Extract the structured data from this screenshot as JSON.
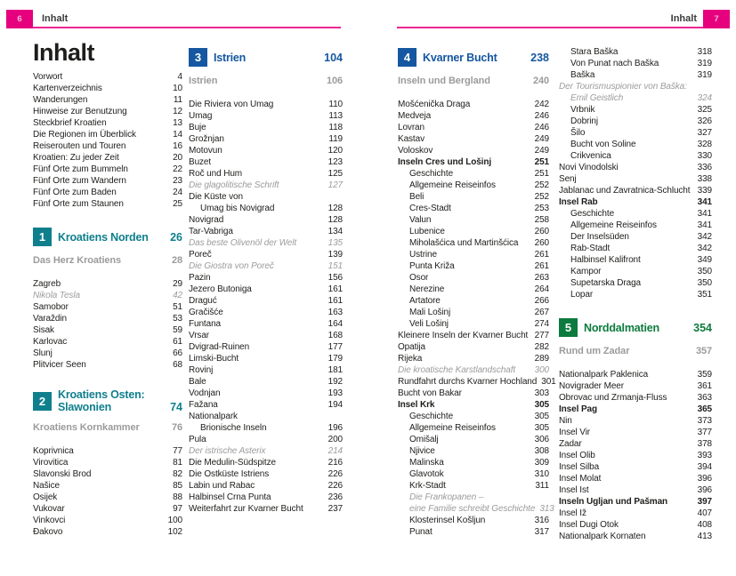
{
  "colors": {
    "pink": "#e6007e",
    "teal": "#0f7f8d",
    "blue": "#1557a0",
    "green": "#0d7b3d",
    "body": "#1d1d1b",
    "muted": "#9b9b9b"
  },
  "pages": [
    {
      "number": "6",
      "header_label": "Inhalt",
      "columns": [
        {
          "blocks": [
            {
              "type": "title",
              "text": "Inhalt"
            },
            {
              "type": "entries",
              "items": [
                {
                  "t": "Vorwort",
                  "p": "4"
                },
                {
                  "t": "Kartenverzeichnis",
                  "p": "10"
                },
                {
                  "t": "Wanderungen",
                  "p": "11"
                },
                {
                  "t": "Hinweise zur Benutzung",
                  "p": "12"
                },
                {
                  "t": "Steckbrief Kroatien",
                  "p": "13"
                },
                {
                  "t": "Die Regionen im Überblick",
                  "p": "14"
                },
                {
                  "t": "Reiserouten und Touren",
                  "p": "16"
                },
                {
                  "t": "Kroatien: Zu jeder Zeit",
                  "p": "20"
                },
                {
                  "t": "Fünf Orte zum Bummeln",
                  "p": "22"
                },
                {
                  "t": "Fünf Orte zum Wandern",
                  "p": "23"
                },
                {
                  "t": "Fünf Orte zum Baden",
                  "p": "24"
                },
                {
                  "t": "Fünf Orte zum Staunen",
                  "p": "25"
                }
              ]
            },
            {
              "type": "section",
              "num": "1",
              "lines": [
                "Kroatiens Norden"
              ],
              "page": "26",
              "color": "teal"
            },
            {
              "type": "subhead",
              "text": "Das Herz Kroatiens",
              "page": "28"
            },
            {
              "type": "entries",
              "items": [
                {
                  "t": "Zagreb",
                  "p": "29"
                },
                {
                  "t": "Nikola Tesla",
                  "p": "42",
                  "s": "i"
                },
                {
                  "t": "Samobor",
                  "p": "51"
                },
                {
                  "t": "Varaždin",
                  "p": "53"
                },
                {
                  "t": "Sisak",
                  "p": "59"
                },
                {
                  "t": "Karlovac",
                  "p": "61"
                },
                {
                  "t": "Slunj",
                  "p": "66"
                },
                {
                  "t": "Plitvicer Seen",
                  "p": "68"
                }
              ]
            },
            {
              "type": "section",
              "num": "2",
              "lines": [
                "Kroatiens Osten:",
                "Slawonien"
              ],
              "page": "74",
              "color": "teal"
            },
            {
              "type": "subhead",
              "text": "Kroatiens Kornkammer",
              "page": "76"
            },
            {
              "type": "entries",
              "items": [
                {
                  "t": "Koprivnica",
                  "p": "77"
                },
                {
                  "t": "Virovitica",
                  "p": "81"
                },
                {
                  "t": "Slavonski Brod",
                  "p": "82"
                },
                {
                  "t": "Našice",
                  "p": "85"
                },
                {
                  "t": "Osijek",
                  "p": "88"
                },
                {
                  "t": "Vukovar",
                  "p": "97"
                },
                {
                  "t": "Vinkovci",
                  "p": "100"
                },
                {
                  "t": "Đakovo",
                  "p": "102"
                }
              ]
            }
          ]
        },
        {
          "blocks": [
            {
              "type": "section",
              "num": "3",
              "lines": [
                "Istrien"
              ],
              "page": "104",
              "color": "blue"
            },
            {
              "type": "subhead",
              "text": "Istrien",
              "page": "106"
            },
            {
              "type": "entries",
              "items": [
                {
                  "t": "Die Riviera von Umag",
                  "p": "110"
                },
                {
                  "t": "Umag",
                  "p": "113"
                },
                {
                  "t": "Buje",
                  "p": "118"
                },
                {
                  "t": "Grožnjan",
                  "p": "119"
                },
                {
                  "t": "Motovun",
                  "p": "120"
                },
                {
                  "t": "Buzet",
                  "p": "123"
                },
                {
                  "t": "Roč und Hum",
                  "p": "125"
                },
                {
                  "t": "Die glagolitische Schrift",
                  "p": "127",
                  "s": "i"
                },
                {
                  "t": "Die Küste von",
                  "p": ""
                },
                {
                  "t": "Umag bis Novigrad",
                  "p": "128",
                  "ind": 1
                },
                {
                  "t": "Novigrad",
                  "p": "128"
                },
                {
                  "t": "Tar-Vabriga",
                  "p": "134"
                },
                {
                  "t": "Das beste Olivenöl der Welt",
                  "p": "135",
                  "s": "i"
                },
                {
                  "t": "Poreč",
                  "p": "139"
                },
                {
                  "t": "Die Giostra von Poreč",
                  "p": "151",
                  "s": "i"
                },
                {
                  "t": "Pazin",
                  "p": "156"
                },
                {
                  "t": "Jezero Butoniga",
                  "p": "161"
                },
                {
                  "t": "Draguć",
                  "p": "161"
                },
                {
                  "t": "Gračišće",
                  "p": "163"
                },
                {
                  "t": "Funtana",
                  "p": "164"
                },
                {
                  "t": "Vrsar",
                  "p": "168"
                },
                {
                  "t": "Dvigrad-Ruinen",
                  "p": "177"
                },
                {
                  "t": "Limski-Bucht",
                  "p": "179"
                },
                {
                  "t": "Rovinj",
                  "p": "181"
                },
                {
                  "t": "Bale",
                  "p": "192"
                },
                {
                  "t": "Vodnjan",
                  "p": "193"
                },
                {
                  "t": "Fažana",
                  "p": "194"
                },
                {
                  "t": "Nationalpark",
                  "p": ""
                },
                {
                  "t": "Brionische Inseln",
                  "p": "196",
                  "ind": 1
                },
                {
                  "t": "Pula",
                  "p": "200"
                },
                {
                  "t": "Der istrische Asterix",
                  "p": "214",
                  "s": "i"
                },
                {
                  "t": "Die Medulin-Südspitze",
                  "p": "216"
                },
                {
                  "t": "Die Ostküste Istriens",
                  "p": "226"
                },
                {
                  "t": "Labin und Rabac",
                  "p": "226"
                },
                {
                  "t": "Halbinsel Crna Punta",
                  "p": "236"
                },
                {
                  "t": "Weiterfahrt zur Kvarner Bucht",
                  "p": "237"
                }
              ]
            }
          ]
        }
      ]
    },
    {
      "number": "7",
      "header_label": "Inhalt",
      "columns": [
        {
          "blocks": [
            {
              "type": "section",
              "num": "4",
              "lines": [
                "Kvarner Bucht"
              ],
              "page": "238",
              "color": "blue"
            },
            {
              "type": "subhead",
              "text": "Inseln und Bergland",
              "page": "240"
            },
            {
              "type": "entries",
              "items": [
                {
                  "t": "Mošćenička Draga",
                  "p": "242"
                },
                {
                  "t": "Medveja",
                  "p": "246"
                },
                {
                  "t": "Lovran",
                  "p": "246"
                },
                {
                  "t": "Kastav",
                  "p": "249"
                },
                {
                  "t": "Voloskov",
                  "p": "249"
                },
                {
                  "t": "Inseln Cres und Lošinj",
                  "p": "251",
                  "s": "b"
                },
                {
                  "t": "Geschichte",
                  "p": "251",
                  "ind": 1
                },
                {
                  "t": "Allgemeine Reiseinfos",
                  "p": "252",
                  "ind": 1
                },
                {
                  "t": "Beli",
                  "p": "252",
                  "ind": 1
                },
                {
                  "t": "Cres-Stadt",
                  "p": "253",
                  "ind": 1
                },
                {
                  "t": "Valun",
                  "p": "258",
                  "ind": 1
                },
                {
                  "t": "Lubenice",
                  "p": "260",
                  "ind": 1
                },
                {
                  "t": "Miholašćica und Martinšćica",
                  "p": "260",
                  "ind": 1
                },
                {
                  "t": "Ustrine",
                  "p": "261",
                  "ind": 1
                },
                {
                  "t": "Punta Križa",
                  "p": "261",
                  "ind": 1
                },
                {
                  "t": "Osor",
                  "p": "263",
                  "ind": 1
                },
                {
                  "t": "Nerezine",
                  "p": "264",
                  "ind": 1
                },
                {
                  "t": "Artatore",
                  "p": "266",
                  "ind": 1
                },
                {
                  "t": "Mali Lošinj",
                  "p": "267",
                  "ind": 1
                },
                {
                  "t": "Veli Lošinj",
                  "p": "274",
                  "ind": 1
                },
                {
                  "t": "Kleinere Inseln der Kvarner Bucht",
                  "p": "277"
                },
                {
                  "t": "Opatija",
                  "p": "282"
                },
                {
                  "t": "Rijeka",
                  "p": "289"
                },
                {
                  "t": "Die kroatische Karstlandschaft",
                  "p": "300",
                  "s": "i"
                },
                {
                  "t": "Rundfahrt durchs Kvarner Hochland",
                  "p": "301"
                },
                {
                  "t": "Bucht von Bakar",
                  "p": "303"
                },
                {
                  "t": "Insel Krk",
                  "p": "305",
                  "s": "b"
                },
                {
                  "t": "Geschichte",
                  "p": "305",
                  "ind": 1
                },
                {
                  "t": "Allgemeine Reiseinfos",
                  "p": "305",
                  "ind": 1
                },
                {
                  "t": "Omišalj",
                  "p": "306",
                  "ind": 1
                },
                {
                  "t": "Njivice",
                  "p": "308",
                  "ind": 1
                },
                {
                  "t": "Malinska",
                  "p": "309",
                  "ind": 1
                },
                {
                  "t": "Glavotok",
                  "p": "310",
                  "ind": 1
                },
                {
                  "t": "Krk-Stadt",
                  "p": "311",
                  "ind": 1
                },
                {
                  "t": "Die Frankopanen –",
                  "p": "",
                  "s": "i",
                  "ind": 1
                },
                {
                  "t": "eine Familie schreibt Geschichte",
                  "p": "313",
                  "s": "i",
                  "ind": 1
                },
                {
                  "t": "Klosterinsel Košljun",
                  "p": "316",
                  "ind": 1
                },
                {
                  "t": "Punat",
                  "p": "317",
                  "ind": 1
                }
              ]
            }
          ]
        },
        {
          "blocks": [
            {
              "type": "entries",
              "items": [
                {
                  "t": "Stara Baška",
                  "p": "318",
                  "ind": 1
                },
                {
                  "t": "Von Punat nach Baška",
                  "p": "319",
                  "ind": 1
                },
                {
                  "t": "Baška",
                  "p": "319",
                  "ind": 1
                },
                {
                  "t": "Der Tourismuspionier von Baška:",
                  "p": "",
                  "s": "i"
                },
                {
                  "t": "Emil Geistlich",
                  "p": "324",
                  "s": "i",
                  "ind": 1
                },
                {
                  "t": "Vrbnik",
                  "p": "325",
                  "ind": 1
                },
                {
                  "t": "Dobrinj",
                  "p": "326",
                  "ind": 1
                },
                {
                  "t": "Šilo",
                  "p": "327",
                  "ind": 1
                },
                {
                  "t": "Bucht von Soline",
                  "p": "328",
                  "ind": 1
                },
                {
                  "t": "Crikvenica",
                  "p": "330",
                  "ind": 1
                },
                {
                  "t": "Novi Vinodolski",
                  "p": "336"
                },
                {
                  "t": "Senj",
                  "p": "338"
                },
                {
                  "t": "Jablanac und Zavratnica-Schlucht",
                  "p": "339"
                },
                {
                  "t": "Insel Rab",
                  "p": "341",
                  "s": "b"
                },
                {
                  "t": "Geschichte",
                  "p": "341",
                  "ind": 1
                },
                {
                  "t": "Allgemeine Reiseinfos",
                  "p": "341",
                  "ind": 1
                },
                {
                  "t": "Der Inselsüden",
                  "p": "342",
                  "ind": 1
                },
                {
                  "t": "Rab-Stadt",
                  "p": "342",
                  "ind": 1
                },
                {
                  "t": "Halbinsel Kalifront",
                  "p": "349",
                  "ind": 1
                },
                {
                  "t": "Kampor",
                  "p": "350",
                  "ind": 1
                },
                {
                  "t": "Supetarska Draga",
                  "p": "350",
                  "ind": 1
                },
                {
                  "t": "Lopar",
                  "p": "351",
                  "ind": 1
                }
              ]
            },
            {
              "type": "section",
              "num": "5",
              "lines": [
                "Norddalmatien"
              ],
              "page": "354",
              "color": "green"
            },
            {
              "type": "subhead",
              "text": "Rund um Zadar",
              "page": "357"
            },
            {
              "type": "entries",
              "items": [
                {
                  "t": "Nationalpark Paklenica",
                  "p": "359"
                },
                {
                  "t": "Novigrader Meer",
                  "p": "361"
                },
                {
                  "t": "Obrovac und Zrmanja-Fluss",
                  "p": "363"
                },
                {
                  "t": "Insel Pag",
                  "p": "365",
                  "s": "b"
                },
                {
                  "t": "Nin",
                  "p": "373"
                },
                {
                  "t": "Insel Vir",
                  "p": "377"
                },
                {
                  "t": "Zadar",
                  "p": "378"
                },
                {
                  "t": "Insel Olib",
                  "p": "393"
                },
                {
                  "t": "Insel Silba",
                  "p": "394"
                },
                {
                  "t": "Insel Molat",
                  "p": "396"
                },
                {
                  "t": "Insel Ist",
                  "p": "396"
                },
                {
                  "t": "Inseln Ugljan und Pašman",
                  "p": "397",
                  "s": "b"
                },
                {
                  "t": "Insel Iž",
                  "p": "407"
                },
                {
                  "t": "Insel Dugi Otok",
                  "p": "408"
                },
                {
                  "t": "Nationalpark Kornaten",
                  "p": "413"
                }
              ]
            }
          ]
        }
      ]
    }
  ]
}
